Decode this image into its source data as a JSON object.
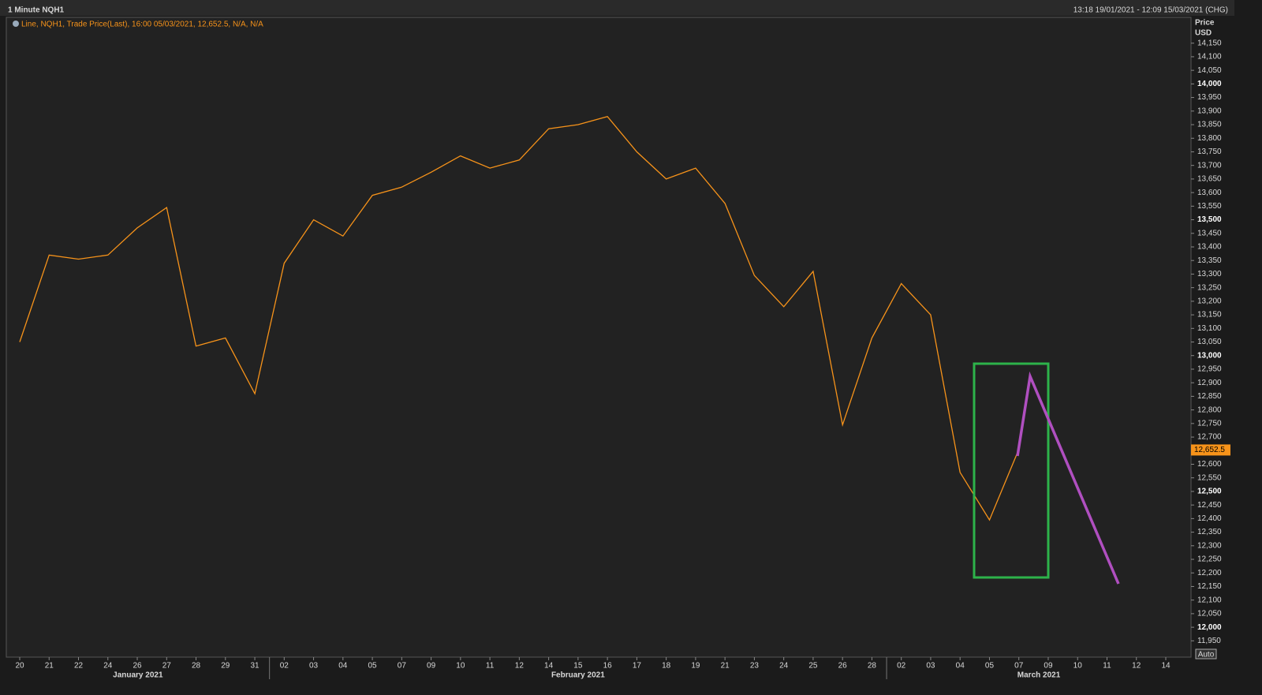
{
  "chart_data": {
    "type": "line",
    "title": "1 Minute NQH1",
    "subtitle": "13:18 19/01/2021 - 12:09 15/03/2021 (CHG)",
    "legend_text": "Line, NQH1, Trade Price(Last), 16:00 05/03/2021, 12,652.5, N/A, N/A",
    "y_axis_label": "Price",
    "y_axis_unit": "USD",
    "auto_button": "Auto",
    "categories": [
      "20",
      "21",
      "22",
      "24",
      "26",
      "27",
      "28",
      "29",
      "31",
      "02",
      "03",
      "04",
      "05",
      "07",
      "09",
      "10",
      "11",
      "12",
      "14",
      "15",
      "16",
      "17",
      "18",
      "19",
      "21",
      "23",
      "24",
      "25",
      "26",
      "28",
      "02",
      "03",
      "04",
      "05",
      "07",
      "09",
      "10",
      "11",
      "12",
      "14"
    ],
    "month_labels": [
      "January 2021",
      "February 2021",
      "March 2021"
    ],
    "series": [
      {
        "name": "NQH1",
        "color": "#f7931a",
        "values": [
          13050,
          13370,
          13355,
          13370,
          13470,
          13545,
          13035,
          13065,
          12860,
          13340,
          13500,
          13440,
          13590,
          13620,
          13675,
          13735,
          13690,
          13720,
          13835,
          13850,
          13880,
          13750,
          13650,
          13690,
          13560,
          13295,
          13180,
          13310,
          12745,
          13065,
          13265,
          13150,
          12570,
          12395,
          12655,
          null,
          null,
          null,
          null,
          null
        ]
      }
    ],
    "last_price": 12652.5,
    "last_price_label": "12,652.5",
    "ylim": [
      11890,
      14245
    ],
    "yticks": [
      {
        "value": 11950,
        "label": "11,950"
      },
      {
        "value": 12000,
        "label": "12,000"
      },
      {
        "value": 12050,
        "label": "12,050"
      },
      {
        "value": 12100,
        "label": "12,100"
      },
      {
        "value": 12150,
        "label": "12,150"
      },
      {
        "value": 12200,
        "label": "12,200"
      },
      {
        "value": 12250,
        "label": "12,250"
      },
      {
        "value": 12300,
        "label": "12,300"
      },
      {
        "value": 12350,
        "label": "12,350"
      },
      {
        "value": 12400,
        "label": "12,400"
      },
      {
        "value": 12450,
        "label": "12,450"
      },
      {
        "value": 12500,
        "label": "12,500"
      },
      {
        "value": 12550,
        "label": "12,550"
      },
      {
        "value": 12600,
        "label": "12,600"
      },
      {
        "value": 12650,
        "label": "12,650"
      },
      {
        "value": 12700,
        "label": "12,700"
      },
      {
        "value": 12750,
        "label": "12,750"
      },
      {
        "value": 12800,
        "label": "12,800"
      },
      {
        "value": 12850,
        "label": "12,850"
      },
      {
        "value": 12900,
        "label": "12,900"
      },
      {
        "value": 12950,
        "label": "12,950"
      },
      {
        "value": 13000,
        "label": "13,000"
      },
      {
        "value": 13050,
        "label": "13,050"
      },
      {
        "value": 13100,
        "label": "13,100"
      },
      {
        "value": 13150,
        "label": "13,150"
      },
      {
        "value": 13200,
        "label": "13,200"
      },
      {
        "value": 13250,
        "label": "13,250"
      },
      {
        "value": 13300,
        "label": "13,300"
      },
      {
        "value": 13350,
        "label": "13,350"
      },
      {
        "value": 13400,
        "label": "13,400"
      },
      {
        "value": 13450,
        "label": "13,450"
      },
      {
        "value": 13500,
        "label": "13,500"
      },
      {
        "value": 13550,
        "label": "13,550"
      },
      {
        "value": 13600,
        "label": "13,600"
      },
      {
        "value": 13650,
        "label": "13,650"
      },
      {
        "value": 13700,
        "label": "13,700"
      },
      {
        "value": 13750,
        "label": "13,750"
      },
      {
        "value": 13800,
        "label": "13,800"
      },
      {
        "value": 13850,
        "label": "13,850"
      },
      {
        "value": 13900,
        "label": "13,900"
      },
      {
        "value": 13950,
        "label": "13,950"
      },
      {
        "value": 14000,
        "label": "14,000"
      },
      {
        "value": 14050,
        "label": "14,050"
      },
      {
        "value": 14100,
        "label": "14,100"
      },
      {
        "value": 14150,
        "label": "14,150"
      }
    ],
    "grid": false
  }
}
